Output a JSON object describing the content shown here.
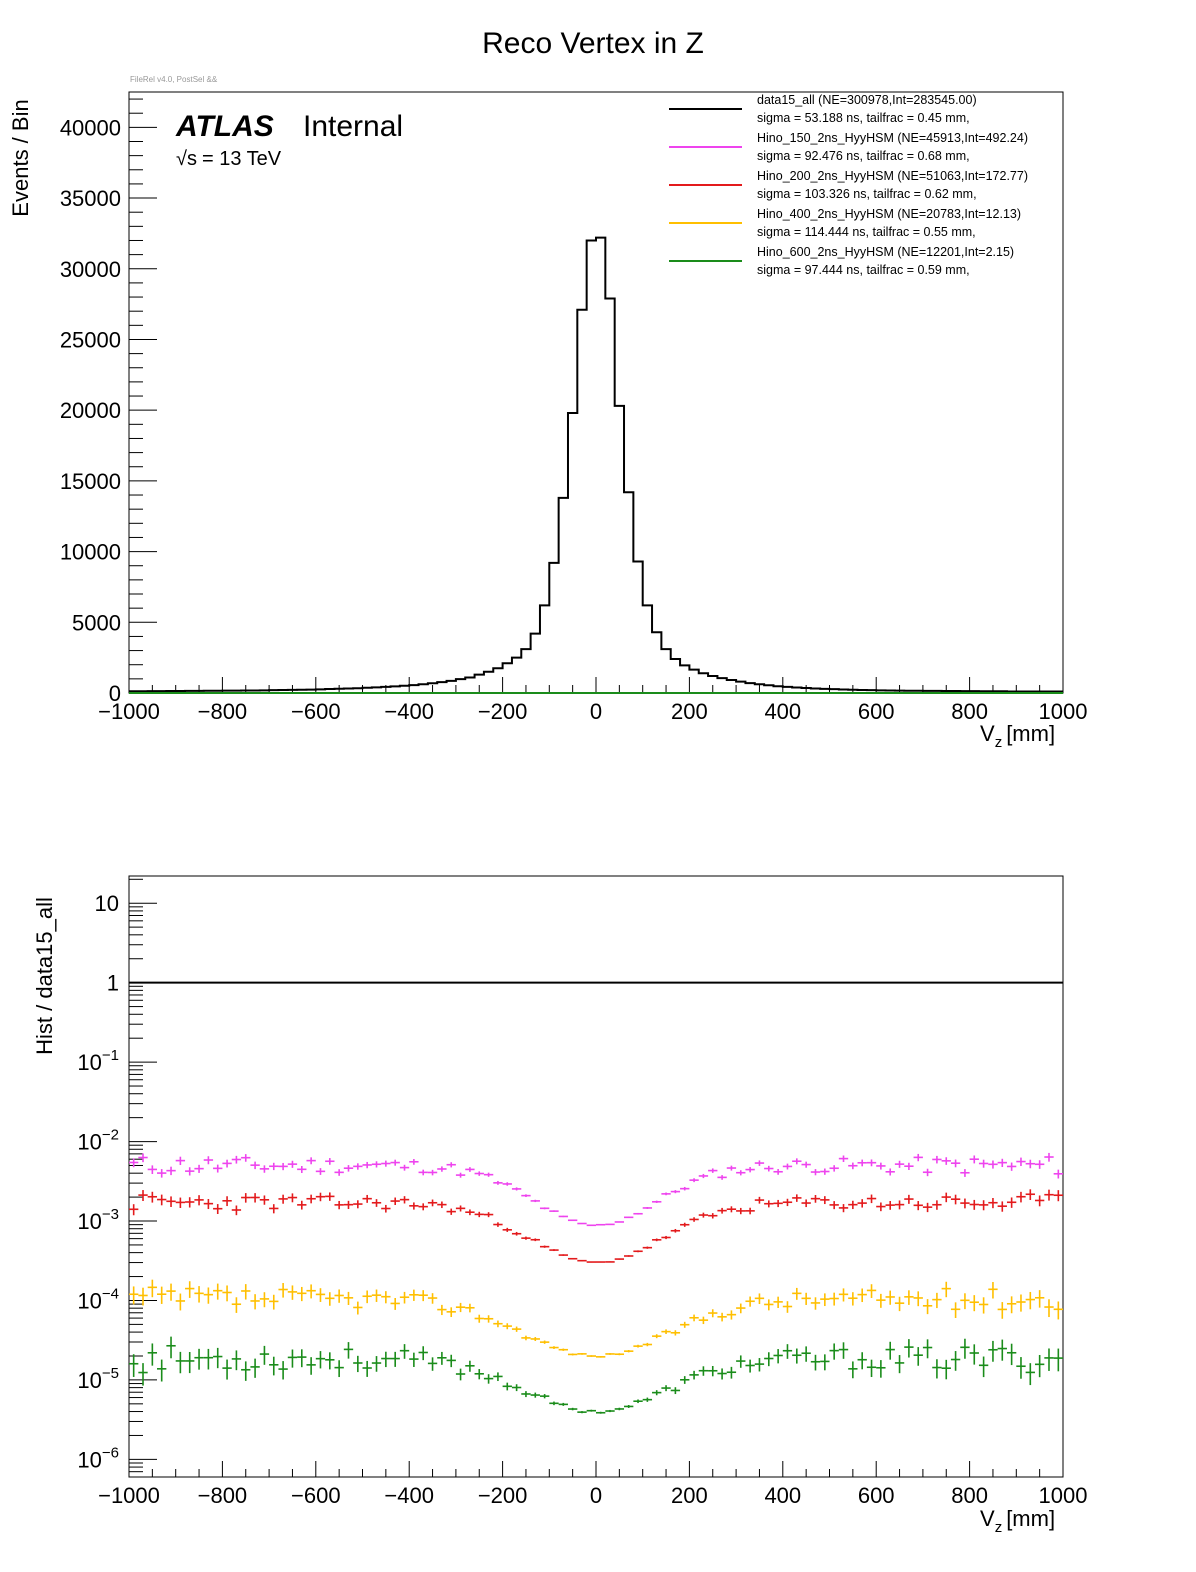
{
  "title": "Reco Vertex in Z",
  "file_label": "FileRel v4.0, PostSel &&",
  "atlas": {
    "brand": "ATLAS",
    "status": "Internal",
    "energy_prefix": "√s",
    "energy": "= 13 TeV"
  },
  "colors": {
    "data15_all": "#000000",
    "Hino_150": "#ee44ee",
    "Hino_200": "#e31a1c",
    "Hino_400": "#ffbf00",
    "Hino_600": "#1a8c1a"
  },
  "legend": [
    {
      "key": "data15_all",
      "line1": "data15_all  (NE=300978,Int=283545.00)",
      "line2": "sigma = 53.188 ns, tailfrac = 0.45 mm,"
    },
    {
      "key": "Hino_150",
      "line1": "Hino_150_2ns_HyyHSM  (NE=45913,Int=492.24)",
      "line2": "sigma = 92.476 ns, tailfrac = 0.68 mm,"
    },
    {
      "key": "Hino_200",
      "line1": "Hino_200_2ns_HyyHSM  (NE=51063,Int=172.77)",
      "line2": "sigma = 103.326 ns, tailfrac = 0.62 mm,"
    },
    {
      "key": "Hino_400",
      "line1": "Hino_400_2ns_HyyHSM  (NE=20783,Int=12.13)",
      "line2": "sigma = 114.444 ns, tailfrac = 0.55 mm,"
    },
    {
      "key": "Hino_600",
      "line1": "Hino_600_2ns_HyyHSM  (NE=12201,Int=2.15)",
      "line2": "sigma = 97.444 ns, tailfrac = 0.59 mm,"
    }
  ],
  "chart_data": [
    {
      "type": "line",
      "subtype": "step-histogram",
      "title": "Reco Vertex in Z",
      "xlabel": "V",
      "xlabel_sub": "z",
      "xlabel_unit": "[mm]",
      "ylabel": "Events / Bin",
      "xlim": [
        -1000,
        1000
      ],
      "ylim": [
        0,
        42500
      ],
      "xticks": [
        -1000,
        -800,
        -600,
        -400,
        -200,
        0,
        200,
        400,
        600,
        800,
        1000
      ],
      "xtick_labels": [
        "−1000",
        "−800",
        "−600",
        "−400",
        "−200",
        "0",
        "200",
        "400",
        "600",
        "800",
        "1000"
      ],
      "yticks": [
        0,
        5000,
        10000,
        15000,
        20000,
        25000,
        30000,
        35000,
        40000
      ],
      "ytick_labels": [
        "0",
        "5000",
        "10000",
        "15000",
        "20000",
        "25000",
        "30000",
        "35000",
        "40000"
      ],
      "bin_width": 20,
      "bin_centers": [
        -990,
        -970,
        -950,
        -930,
        -910,
        -890,
        -870,
        -850,
        -830,
        -810,
        -790,
        -770,
        -750,
        -730,
        -710,
        -690,
        -670,
        -650,
        -630,
        -610,
        -590,
        -570,
        -550,
        -530,
        -510,
        -490,
        -470,
        -450,
        -430,
        -410,
        -390,
        -370,
        -350,
        -330,
        -310,
        -290,
        -270,
        -250,
        -230,
        -210,
        -190,
        -170,
        -150,
        -130,
        -110,
        -90,
        -70,
        -50,
        -30,
        -10,
        10,
        30,
        50,
        70,
        90,
        110,
        130,
        150,
        170,
        190,
        210,
        230,
        250,
        270,
        290,
        310,
        330,
        350,
        370,
        390,
        410,
        430,
        450,
        470,
        490,
        510,
        530,
        550,
        570,
        590,
        610,
        630,
        650,
        670,
        690,
        710,
        730,
        750,
        770,
        790,
        810,
        830,
        850,
        870,
        890,
        910,
        930,
        950,
        970,
        990
      ],
      "series": [
        {
          "name": "data15_all",
          "values": [
            120,
            120,
            130,
            130,
            140,
            140,
            150,
            150,
            160,
            160,
            170,
            170,
            180,
            180,
            190,
            200,
            210,
            220,
            230,
            240,
            260,
            280,
            300,
            320,
            340,
            370,
            400,
            430,
            470,
            510,
            560,
            620,
            690,
            770,
            860,
            980,
            1100,
            1300,
            1500,
            1750,
            2100,
            2500,
            3100,
            4200,
            6200,
            9200,
            13800,
            19800,
            27100,
            32000,
            32200,
            27900,
            20300,
            14200,
            9300,
            6200,
            4300,
            3100,
            2400,
            1950,
            1650,
            1400,
            1200,
            1050,
            920,
            800,
            700,
            620,
            550,
            480,
            430,
            390,
            350,
            320,
            290,
            270,
            250,
            230,
            210,
            200,
            190,
            180,
            170,
            160,
            160,
            150,
            150,
            140,
            140,
            130,
            130,
            120,
            120,
            120,
            110,
            110,
            110,
            110,
            110,
            110
          ]
        },
        {
          "name": "Hino_150_2ns_HyyHSM",
          "values": [
            2,
            2,
            2,
            2,
            2,
            2,
            2,
            2,
            2,
            2,
            2,
            2,
            2,
            2,
            2,
            2,
            2,
            2,
            2,
            2,
            2,
            2,
            2,
            2,
            2,
            2,
            2,
            2,
            2,
            2,
            2,
            2,
            2,
            2,
            2,
            2,
            2,
            2,
            2,
            2,
            2,
            2,
            2,
            2,
            2,
            2,
            2,
            2,
            2,
            2,
            2,
            2,
            2,
            2,
            2,
            2,
            2,
            2,
            2,
            2,
            2,
            2,
            2,
            2,
            2,
            2,
            2,
            2,
            2,
            2,
            2,
            2,
            2,
            2,
            2,
            2,
            2,
            2,
            2,
            2,
            2,
            2,
            2,
            2,
            2,
            2,
            2,
            2,
            2,
            2,
            2,
            2,
            2,
            2,
            2,
            2,
            2,
            2,
            2,
            2
          ]
        },
        {
          "name": "Hino_200_2ns_HyyHSM",
          "values": [
            1,
            1,
            1,
            1,
            1,
            1,
            1,
            1,
            1,
            1,
            1,
            1,
            1,
            1,
            1,
            1,
            1,
            1,
            1,
            1,
            1,
            1,
            1,
            1,
            1,
            1,
            1,
            1,
            1,
            1,
            1,
            1,
            1,
            1,
            1,
            1,
            1,
            1,
            1,
            1,
            1,
            1,
            1,
            1,
            1,
            1,
            1,
            1,
            1,
            1,
            1,
            1,
            1,
            1,
            1,
            1,
            1,
            1,
            1,
            1,
            1,
            1,
            1,
            1,
            1,
            1,
            1,
            1,
            1,
            1,
            1,
            1,
            1,
            1,
            1,
            1,
            1,
            1,
            1,
            1,
            1,
            1,
            1,
            1,
            1,
            1,
            1,
            1,
            1,
            1,
            1,
            1,
            1,
            1,
            1,
            1,
            1,
            1,
            1,
            1
          ]
        },
        {
          "name": "Hino_400_2ns_HyyHSM",
          "values": [
            0,
            0,
            0,
            0,
            0,
            0,
            0,
            0,
            0,
            0,
            0,
            0,
            0,
            0,
            0,
            0,
            0,
            0,
            0,
            0,
            0,
            0,
            0,
            0,
            0,
            0,
            0,
            0,
            0,
            0,
            0,
            0,
            0,
            0,
            0,
            0,
            0,
            0,
            0,
            0,
            0,
            0,
            0,
            0,
            0,
            0,
            0,
            0,
            0,
            0,
            0,
            0,
            0,
            0,
            0,
            0,
            0,
            0,
            0,
            0,
            0,
            0,
            0,
            0,
            0,
            0,
            0,
            0,
            0,
            0,
            0,
            0,
            0,
            0,
            0,
            0,
            0,
            0,
            0,
            0,
            0,
            0,
            0,
            0,
            0,
            0,
            0,
            0,
            0,
            0,
            0,
            0,
            0,
            0,
            0,
            0,
            0,
            0,
            0,
            0
          ]
        },
        {
          "name": "Hino_600_2ns_HyyHSM",
          "values": [
            0,
            0,
            0,
            0,
            0,
            0,
            0,
            0,
            0,
            0,
            0,
            0,
            0,
            0,
            0,
            0,
            0,
            0,
            0,
            0,
            0,
            0,
            0,
            0,
            0,
            0,
            0,
            0,
            0,
            0,
            0,
            0,
            0,
            0,
            0,
            0,
            0,
            0,
            0,
            0,
            0,
            0,
            0,
            0,
            0,
            0,
            0,
            0,
            0,
            0,
            0,
            0,
            0,
            0,
            0,
            0,
            0,
            0,
            0,
            0,
            0,
            0,
            0,
            0,
            0,
            0,
            0,
            0,
            0,
            0,
            0,
            0,
            0,
            0,
            0,
            0,
            0,
            0,
            0,
            0,
            0,
            0,
            0,
            0,
            0,
            0,
            0,
            0,
            0,
            0,
            0,
            0,
            0,
            0,
            0,
            0,
            0,
            0,
            0,
            0
          ]
        }
      ]
    },
    {
      "type": "scatter",
      "subtype": "ratio-with-errors",
      "xlabel": "V",
      "xlabel_sub": "z",
      "xlabel_unit": "[mm]",
      "ylabel": "Hist / data15_all",
      "yscale": "log",
      "xlim": [
        -1000,
        1000
      ],
      "ylim": [
        6e-07,
        22
      ],
      "xticks": [
        -1000,
        -800,
        -600,
        -400,
        -200,
        0,
        200,
        400,
        600,
        800,
        1000
      ],
      "xtick_labels": [
        "−1000",
        "−800",
        "−600",
        "−400",
        "−200",
        "0",
        "200",
        "400",
        "600",
        "800",
        "1000"
      ],
      "yticks": [
        1e-06,
        1e-05,
        0.0001,
        0.001,
        0.01,
        0.1,
        1,
        10
      ],
      "ytick_labels": [
        {
          "base": "10",
          "exp": "−6"
        },
        {
          "base": "10",
          "exp": "−5"
        },
        {
          "base": "10",
          "exp": "−4"
        },
        {
          "base": "10",
          "exp": "−3"
        },
        {
          "base": "10",
          "exp": "−2"
        },
        {
          "base": "10",
          "exp": "−1"
        },
        {
          "base": "1",
          "exp": ""
        },
        {
          "base": "10",
          "exp": ""
        }
      ],
      "reference_line": 1,
      "series": [
        {
          "name": "Hino_150_2ns_HyyHSM",
          "key": "Hino_150",
          "plateau": 0.005,
          "dip": 0.00088,
          "width": 130,
          "scatter": 0.09,
          "rel_err": 0.08,
          "seed": 11
        },
        {
          "name": "Hino_200_2ns_HyyHSM",
          "key": "Hino_200",
          "plateau": 0.0017,
          "dip": 0.0003,
          "width": 140,
          "scatter": 0.08,
          "rel_err": 0.1,
          "seed": 23
        },
        {
          "name": "Hino_400_2ns_HyyHSM",
          "key": "Hino_400",
          "plateau": 0.000105,
          "dip": 2e-05,
          "width": 155,
          "scatter": 0.11,
          "rel_err": 0.16,
          "seed": 37
        },
        {
          "name": "Hino_600_2ns_HyyHSM",
          "key": "Hino_600",
          "plateau": 1.85e-05,
          "dip": 4e-06,
          "width": 150,
          "scatter": 0.13,
          "rel_err": 0.2,
          "seed": 53
        }
      ]
    }
  ]
}
